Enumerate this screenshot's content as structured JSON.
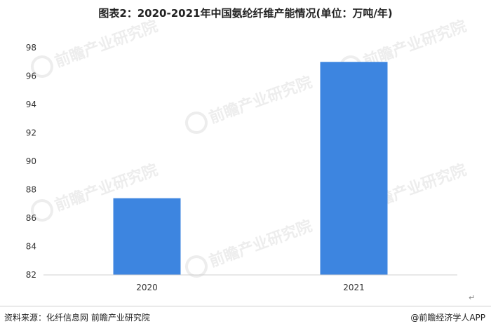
{
  "chart_data": {
    "type": "bar",
    "title": "图表2：2020-2021年中国氨纶纤维产能情况(单位：万吨/年)",
    "categories": [
      "2020",
      "2021"
    ],
    "values": [
      87.4,
      97.0
    ],
    "ylim": [
      82,
      98
    ],
    "yticks": [
      "82",
      "84",
      "86",
      "88",
      "90",
      "92",
      "94",
      "96",
      "98"
    ],
    "xlabel": "",
    "ylabel": "",
    "grid": false,
    "legend": "none",
    "bar_color": "#3D85E0"
  },
  "footer": {
    "source": "资料来源：化纤信息网 前瞻产业研究院",
    "credit": "@前瞻经济学人APP",
    "return_mark": "↵"
  },
  "watermark": {
    "text": "前瞻产业研究院",
    "icon": "qianzhan-logo-icon"
  }
}
